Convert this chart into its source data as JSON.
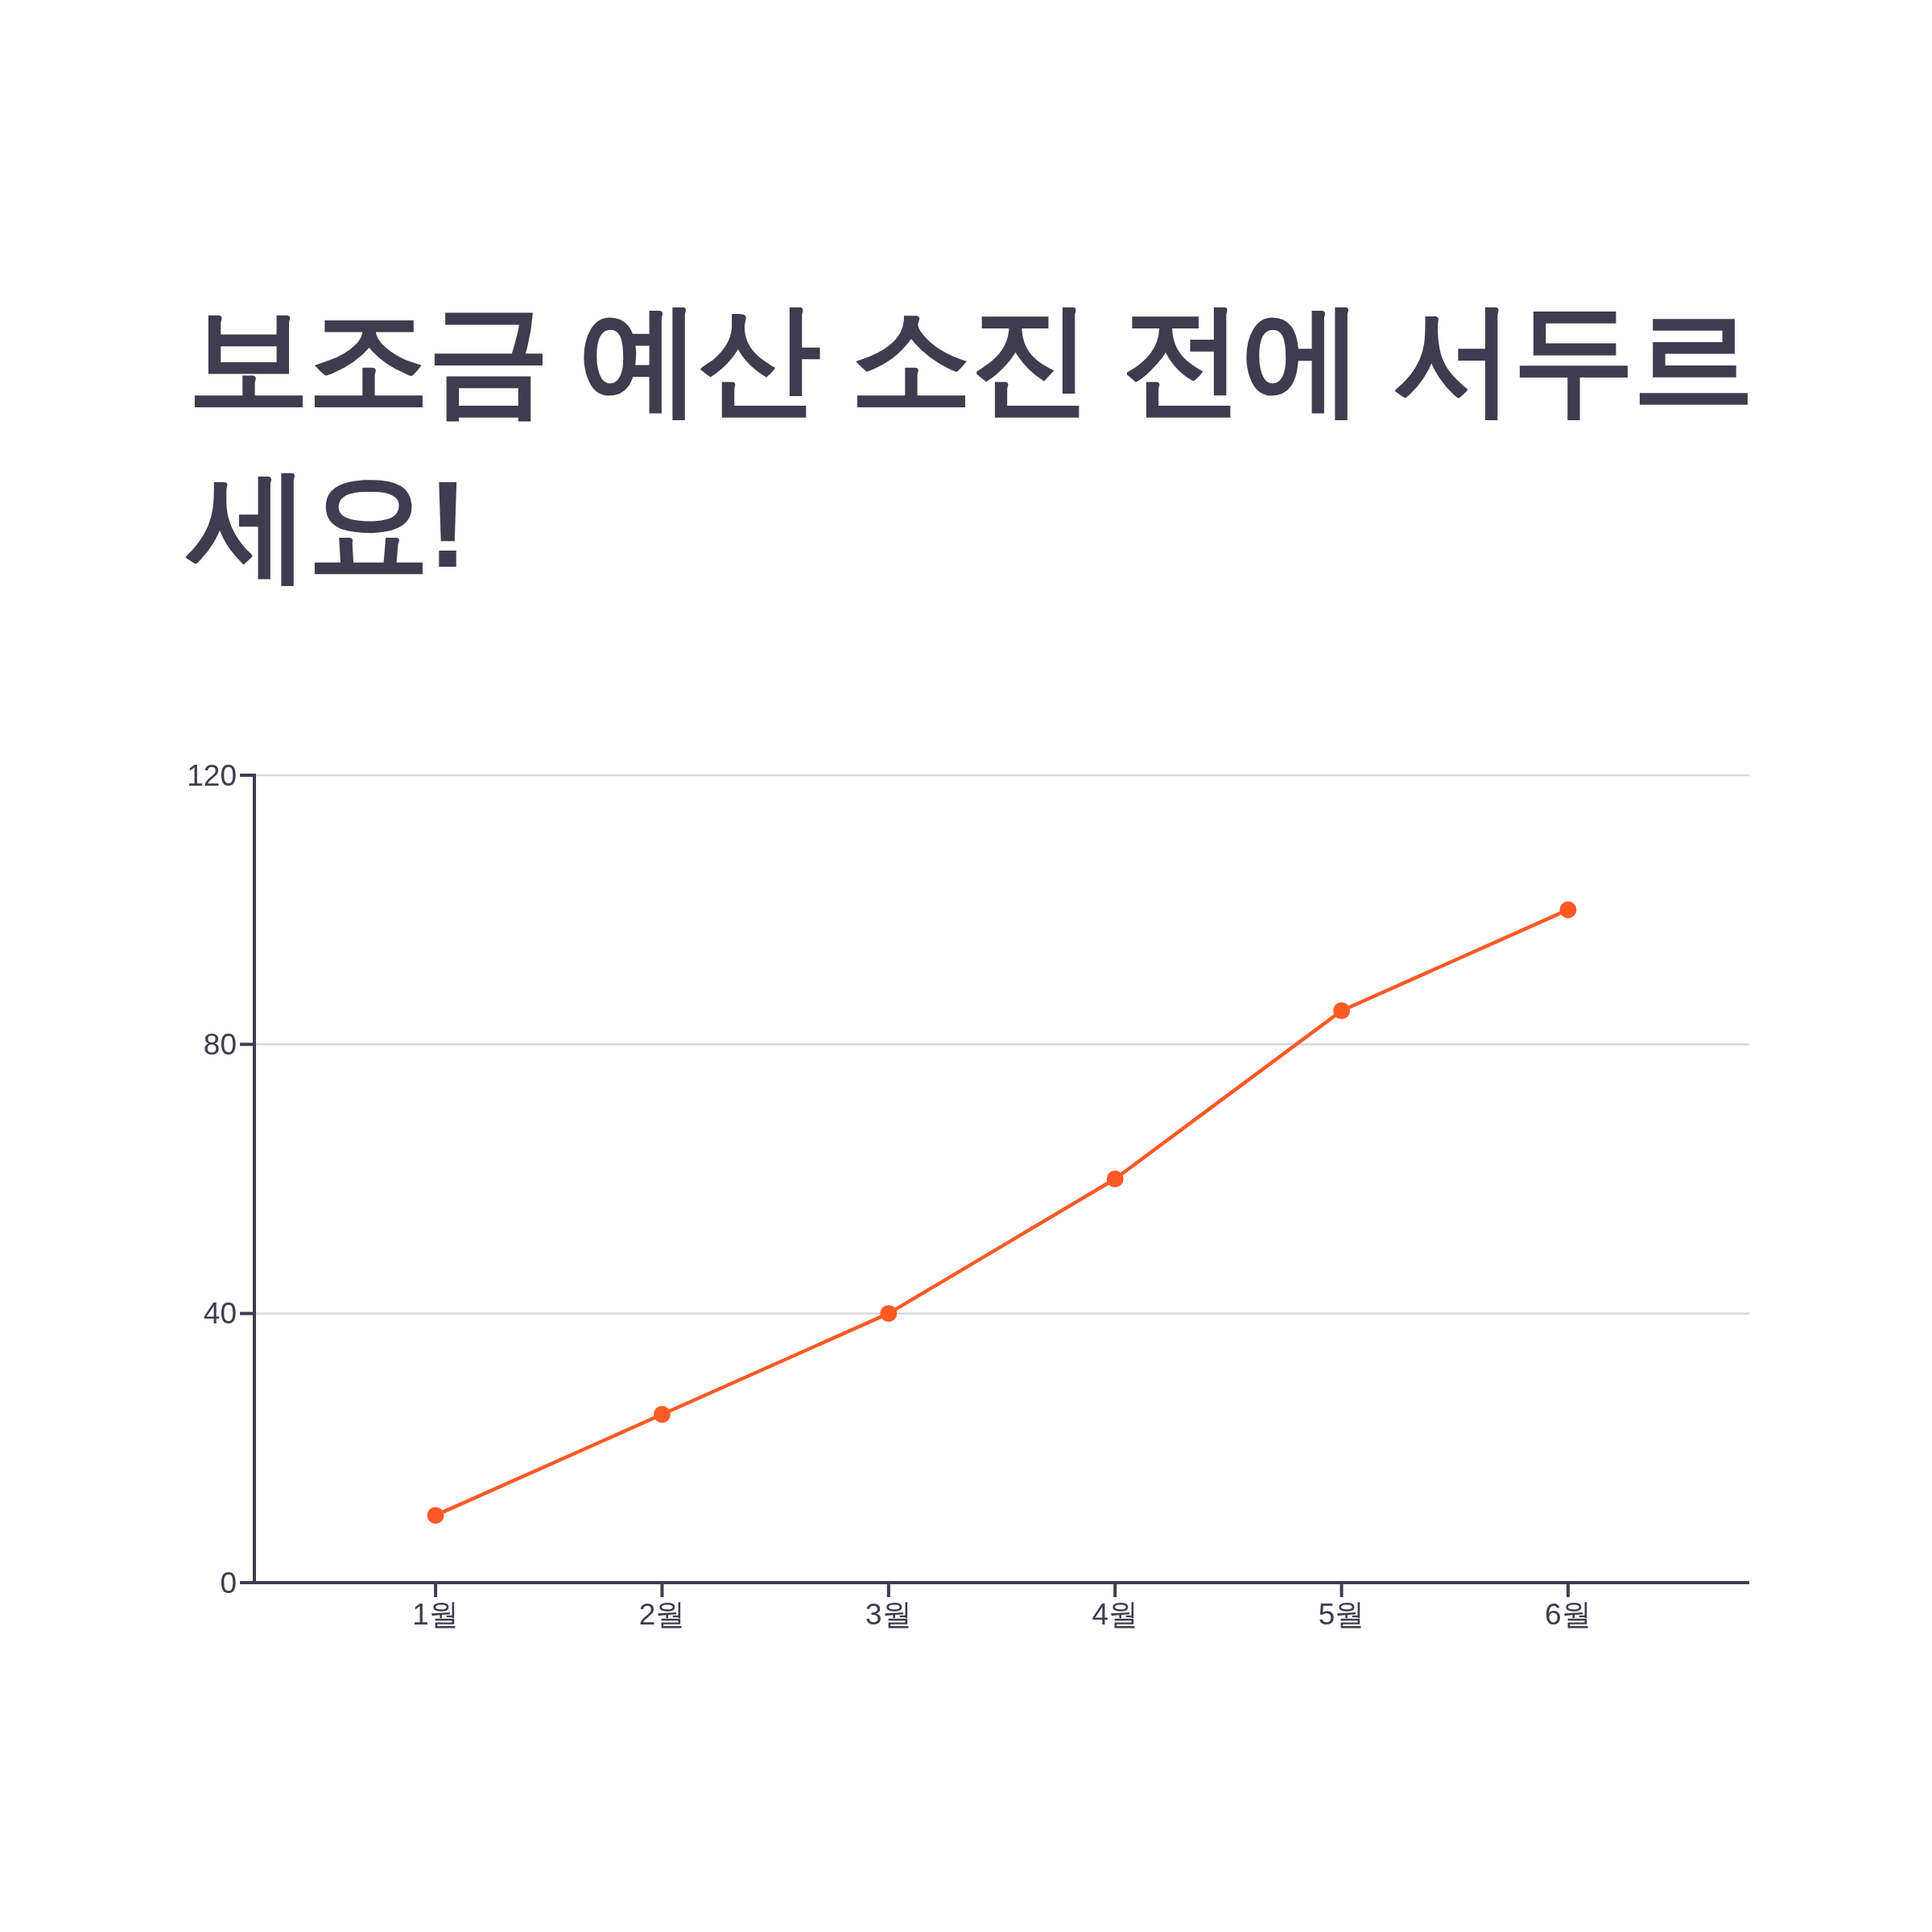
{
  "chart_data": {
    "type": "line",
    "title": "보조금 예산 소진 전에 서두르세요!",
    "categories": [
      "1월",
      "2월",
      "3월",
      "4월",
      "5월",
      "6월"
    ],
    "series": [
      {
        "color": "#ff5a26",
        "values": [
          10,
          25,
          40,
          60,
          85,
          100
        ]
      }
    ],
    "ylim": [
      0,
      120
    ],
    "yticks": [
      0,
      40,
      80,
      120
    ],
    "grid": "y",
    "marker": "circle",
    "line_style": "solid"
  }
}
